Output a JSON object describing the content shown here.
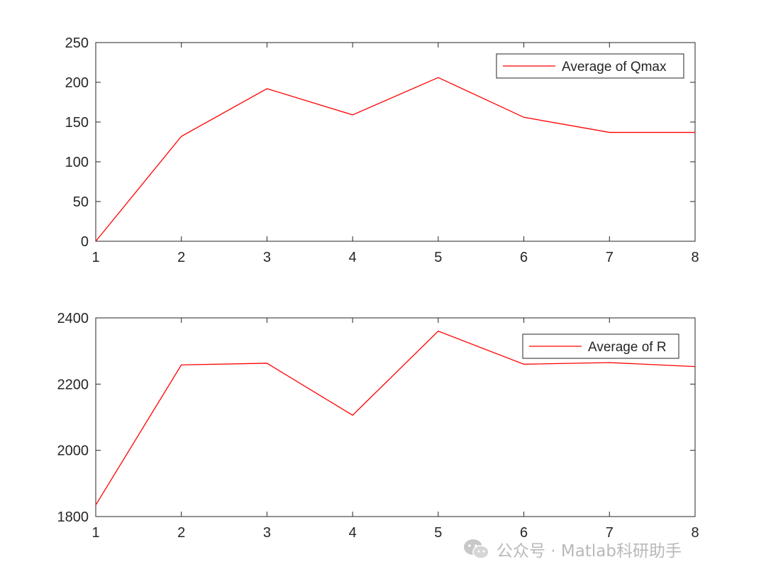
{
  "chart_data": [
    {
      "type": "line",
      "xlim": [
        1,
        8
      ],
      "ylim": [
        0,
        250
      ],
      "x_ticks": [
        "1",
        "2",
        "3",
        "4",
        "5",
        "6",
        "7",
        "8"
      ],
      "y_ticks": [
        "0",
        "50",
        "100",
        "150",
        "200",
        "250"
      ],
      "legend_position": "top-right",
      "grid": false,
      "series": [
        {
          "name": "Average of Qmax",
          "color": "#ff0000",
          "x": [
            1,
            2,
            3,
            4,
            5,
            6,
            7,
            8
          ],
          "values": [
            0,
            132,
            192,
            159,
            206,
            156,
            137,
            137
          ]
        }
      ]
    },
    {
      "type": "line",
      "xlim": [
        1,
        8
      ],
      "ylim": [
        1800,
        2400
      ],
      "x_ticks": [
        "1",
        "2",
        "3",
        "4",
        "5",
        "6",
        "7",
        "8"
      ],
      "y_ticks": [
        "1800",
        "2000",
        "2200",
        "2400"
      ],
      "legend_position": "top-right",
      "grid": false,
      "series": [
        {
          "name": "Average of R",
          "color": "#ff0000",
          "x": [
            1,
            2,
            3,
            4,
            5,
            6,
            7,
            8
          ],
          "values": [
            1835,
            2258,
            2263,
            2106,
            2360,
            2260,
            2265,
            2253
          ]
        }
      ]
    }
  ],
  "watermark": {
    "icon": "wechat-icon",
    "text": "公众号 · Matlab科研助手"
  }
}
